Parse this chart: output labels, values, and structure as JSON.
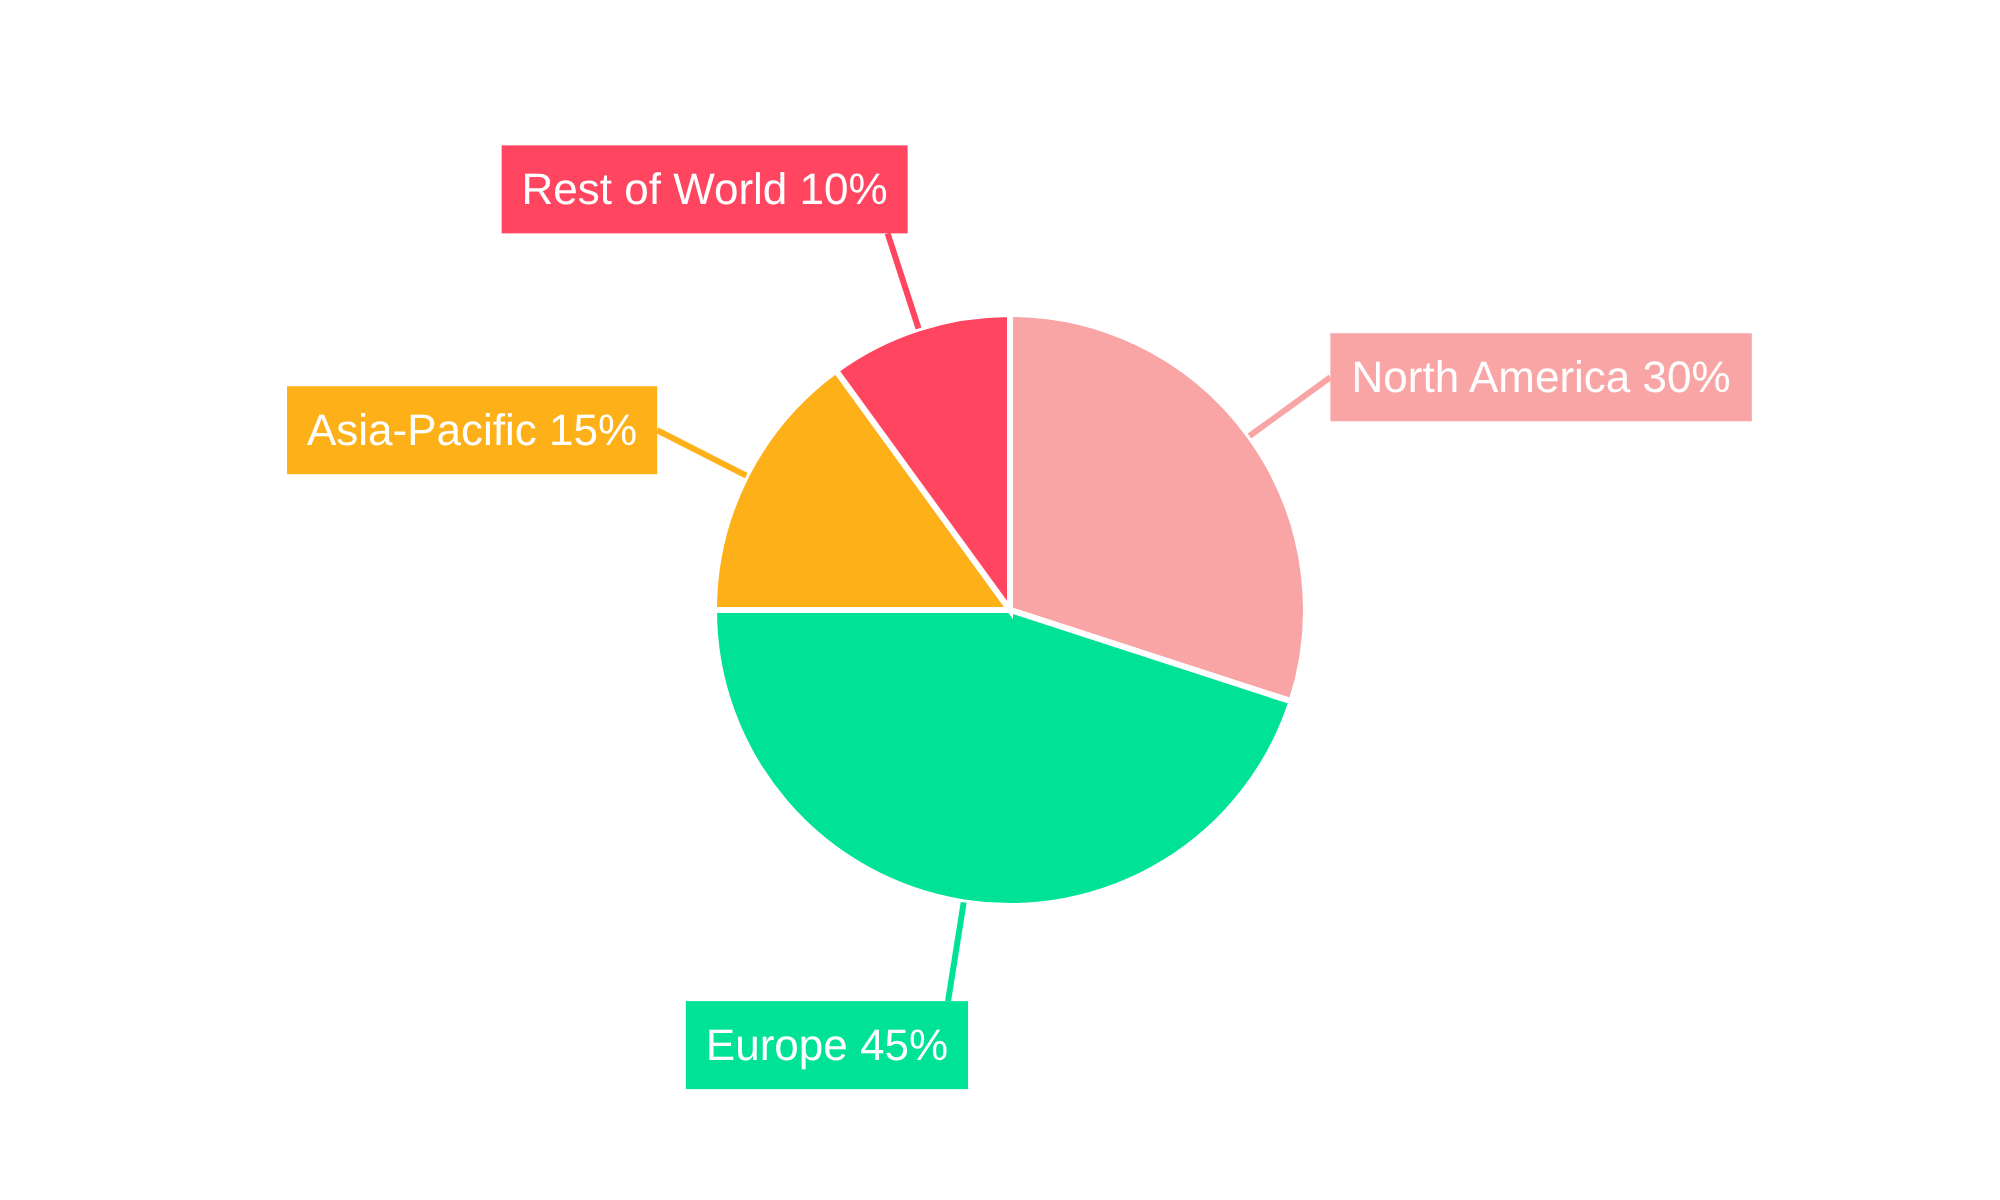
{
  "chart_data": {
    "type": "pie",
    "categories": [
      "North America",
      "Europe",
      "Asia-Pacific",
      "Rest of World"
    ],
    "values": [
      30,
      45,
      15,
      10
    ],
    "colors": [
      "#f9a5a5",
      "#00e396",
      "#feb019",
      "#ff4560"
    ],
    "value_labels": [
      "30%",
      "45%",
      "15%",
      "10%"
    ],
    "legend": false
  }
}
